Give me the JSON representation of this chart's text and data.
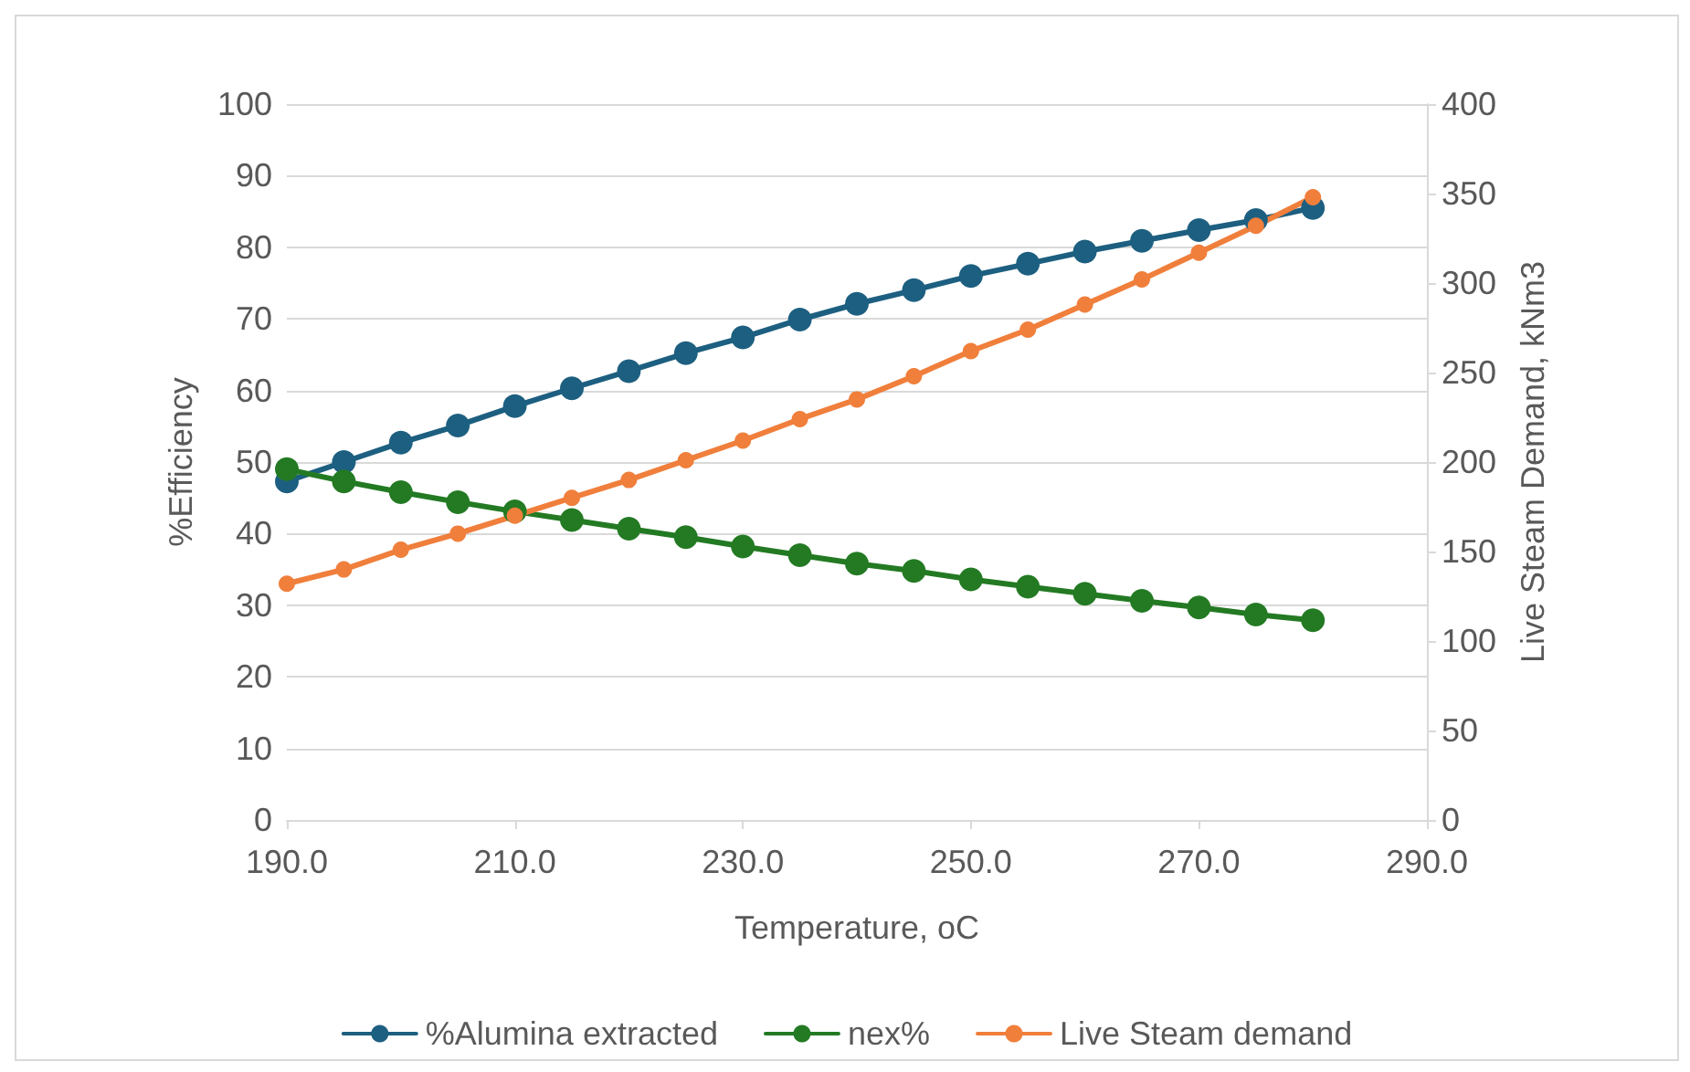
{
  "chart_data": {
    "type": "line",
    "xlabel": "Temperature, oC",
    "ylabel": "%Efficiency",
    "y2label": "Live Steam Demand, kNm3",
    "x": [
      190,
      195,
      200,
      205,
      210,
      215,
      220,
      225,
      230,
      235,
      240,
      245,
      250,
      255,
      260,
      265,
      270,
      275,
      280
    ],
    "series": [
      {
        "name": "%Alumina extracted",
        "color": "#1d5f80",
        "values": [
          47.3,
          50.0,
          52.7,
          55.1,
          57.8,
          60.3,
          62.7,
          65.2,
          67.4,
          69.9,
          72.1,
          74.0,
          76.0,
          77.7,
          79.4,
          80.9,
          82.4,
          83.8,
          85.5
        ]
      },
      {
        "name": "nex%",
        "color": "#237a23",
        "values": [
          49.0,
          47.3,
          45.8,
          44.4,
          43.1,
          41.9,
          40.7,
          39.5,
          38.2,
          37.0,
          35.8,
          34.8,
          33.6,
          32.6,
          31.6,
          30.6,
          29.7,
          28.7,
          27.9
        ]
      },
      {
        "name": "Live Steam demand",
        "color": "#f07f3c",
        "axis": "y2",
        "values": [
          132,
          140,
          151,
          160,
          170,
          180,
          190,
          201,
          212,
          224,
          235,
          248,
          262,
          274,
          288,
          302,
          317,
          332,
          348
        ]
      }
    ],
    "xlim": [
      190,
      290
    ],
    "xticks": [
      {
        "value": 190,
        "label": "190.0"
      },
      {
        "value": 210,
        "label": "210.0"
      },
      {
        "value": 230,
        "label": "230.0"
      },
      {
        "value": 250,
        "label": "250.0"
      },
      {
        "value": 270,
        "label": "270.0"
      },
      {
        "value": 290,
        "label": "290.0"
      }
    ],
    "ylim": [
      0,
      100
    ],
    "yticks": [
      0,
      10,
      20,
      30,
      40,
      50,
      60,
      70,
      80,
      90,
      100
    ],
    "y2lim": [
      0,
      400
    ],
    "y2ticks": [
      0,
      50,
      100,
      150,
      200,
      250,
      300,
      350,
      400
    ],
    "grid": "y",
    "legend": "bottom",
    "marker": "circle",
    "line_style": "solid"
  }
}
